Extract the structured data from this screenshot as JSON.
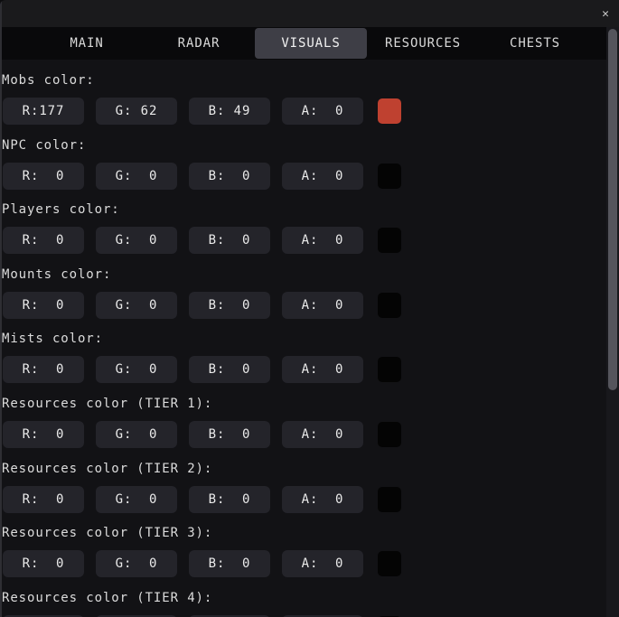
{
  "titlebar": {
    "close_icon": "✕"
  },
  "tabs": [
    {
      "label": "MAIN"
    },
    {
      "label": "RADAR"
    },
    {
      "label": "VISUALS"
    },
    {
      "label": "RESOURCES"
    },
    {
      "label": "CHESTS"
    }
  ],
  "active_tab": "VISUALS",
  "sections": [
    {
      "label": "Mobs color:",
      "r": "R:177",
      "g": "G: 62",
      "b": "B: 49",
      "a": "A:  0",
      "swatch": "#bf4130"
    },
    {
      "label": "NPC color:",
      "r": "R:  0",
      "g": "G:  0",
      "b": "B:  0",
      "a": "A:  0",
      "swatch": "#040404"
    },
    {
      "label": "Players color:",
      "r": "R:  0",
      "g": "G:  0",
      "b": "B:  0",
      "a": "A:  0",
      "swatch": "#040404"
    },
    {
      "label": "Mounts color:",
      "r": "R:  0",
      "g": "G:  0",
      "b": "B:  0",
      "a": "A:  0",
      "swatch": "#040404"
    },
    {
      "label": "Mists color:",
      "r": "R:  0",
      "g": "G:  0",
      "b": "B:  0",
      "a": "A:  0",
      "swatch": "#040404"
    },
    {
      "label": "Resources color (TIER 1):",
      "r": "R:  0",
      "g": "G:  0",
      "b": "B:  0",
      "a": "A:  0",
      "swatch": "#040404"
    },
    {
      "label": "Resources color (TIER 2):",
      "r": "R:  0",
      "g": "G:  0",
      "b": "B:  0",
      "a": "A:  0",
      "swatch": "#040404"
    },
    {
      "label": "Resources color (TIER 3):",
      "r": "R:  0",
      "g": "G:  0",
      "b": "B:  0",
      "a": "A:  0",
      "swatch": "#040404"
    },
    {
      "label": "Resources color (TIER 4):",
      "r": "",
      "g": "",
      "b": "",
      "a": "",
      "swatch": "#040404"
    }
  ],
  "colors": {
    "content_bg": "#121215",
    "titlebar_bg": "#1a1a1c",
    "tabbar_bg": "#09090b",
    "active_tab_bg": "#3e3e46",
    "input_bg": "#24242a",
    "mobs_swatch": "#bf4130",
    "scrollbar_thumb": "#55555c"
  }
}
